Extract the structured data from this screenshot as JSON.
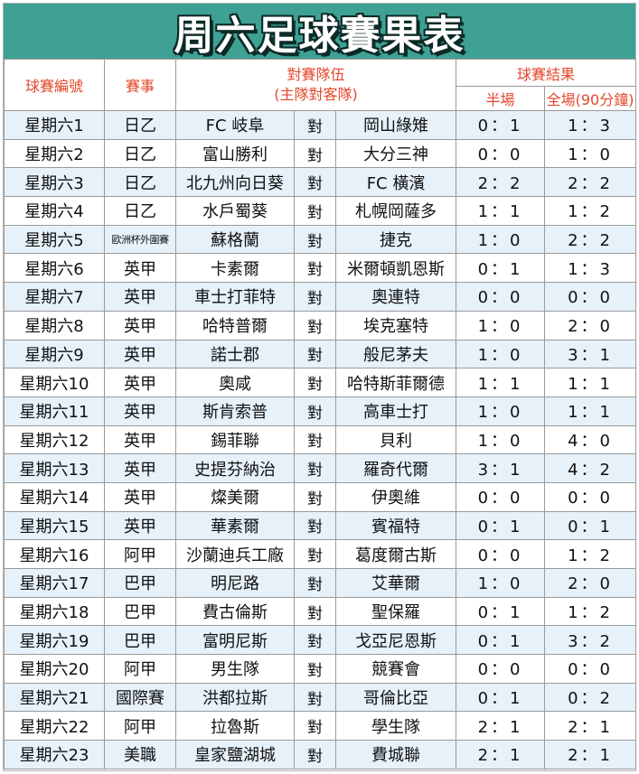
{
  "title": "周六足球賽果表",
  "headers": {
    "match_no": "球賽編號",
    "event": "賽事",
    "teams_line1": "對賽隊伍",
    "teams_line2": "(主隊對客隊)",
    "result": "球賽結果",
    "half_time": "半場",
    "full_time": "全場(90分鐘)"
  },
  "rows": [
    {
      "no": "星期六1",
      "event": "日乙",
      "home": "FC 岐阜",
      "vs": "對",
      "away": "岡山綠雉",
      "ht": "0：1",
      "ft": "1：3"
    },
    {
      "no": "星期六2",
      "event": "日乙",
      "home": "富山勝利",
      "vs": "對",
      "away": "大分三神",
      "ht": "0：0",
      "ft": "1：0"
    },
    {
      "no": "星期六3",
      "event": "日乙",
      "home": "北九州向日葵",
      "vs": "對",
      "away": "FC 橫濱",
      "ht": "2：2",
      "ft": "2：2"
    },
    {
      "no": "星期六4",
      "event": "日乙",
      "home": "水戶蜀葵",
      "vs": "對",
      "away": "札幌岡薩多",
      "ht": "1：1",
      "ft": "1：2"
    },
    {
      "no": "星期六5",
      "event": "歐洲杯外圍賽",
      "home": "蘇格蘭",
      "vs": "對",
      "away": "捷克",
      "ht": "1：0",
      "ft": "2：2"
    },
    {
      "no": "星期六6",
      "event": "英甲",
      "home": "卡素爾",
      "vs": "對",
      "away": "米爾頓凱恩斯",
      "ht": "0：1",
      "ft": "1：3"
    },
    {
      "no": "星期六7",
      "event": "英甲",
      "home": "車士打菲特",
      "vs": "對",
      "away": "奧連特",
      "ht": "0：0",
      "ft": "0：0"
    },
    {
      "no": "星期六8",
      "event": "英甲",
      "home": "哈特普爾",
      "vs": "對",
      "away": "埃克塞特",
      "ht": "1：0",
      "ft": "2：0"
    },
    {
      "no": "星期六9",
      "event": "英甲",
      "home": "諾士郡",
      "vs": "對",
      "away": "般尼茅夫",
      "ht": "1：0",
      "ft": "3：1"
    },
    {
      "no": "星期六10",
      "event": "英甲",
      "home": "奧咸",
      "vs": "對",
      "away": "哈特斯菲爾德",
      "ht": "1：1",
      "ft": "1：1"
    },
    {
      "no": "星期六11",
      "event": "英甲",
      "home": "斯肯索普",
      "vs": "對",
      "away": "高車士打",
      "ht": "1：0",
      "ft": "1：1"
    },
    {
      "no": "星期六12",
      "event": "英甲",
      "home": "錫菲聯",
      "vs": "對",
      "away": "貝利",
      "ht": "1：0",
      "ft": "4：0"
    },
    {
      "no": "星期六13",
      "event": "英甲",
      "home": "史提芬納治",
      "vs": "對",
      "away": "羅奇代爾",
      "ht": "3：1",
      "ft": "4：2"
    },
    {
      "no": "星期六14",
      "event": "英甲",
      "home": "燦美爾",
      "vs": "對",
      "away": "伊奧維",
      "ht": "0：0",
      "ft": "0：0"
    },
    {
      "no": "星期六15",
      "event": "英甲",
      "home": "華素爾",
      "vs": "對",
      "away": "賓福特",
      "ht": "0：1",
      "ft": "0：1"
    },
    {
      "no": "星期六16",
      "event": "阿甲",
      "home": "沙蘭迪兵工廠",
      "vs": "對",
      "away": "葛度爾古斯",
      "ht": "0：0",
      "ft": "1：2"
    },
    {
      "no": "星期六17",
      "event": "巴甲",
      "home": "明尼路",
      "vs": "對",
      "away": "艾華爾",
      "ht": "1：0",
      "ft": "2：0"
    },
    {
      "no": "星期六18",
      "event": "巴甲",
      "home": "費古倫斯",
      "vs": "對",
      "away": "聖保羅",
      "ht": "0：1",
      "ft": "1：2"
    },
    {
      "no": "星期六19",
      "event": "巴甲",
      "home": "富明尼斯",
      "vs": "對",
      "away": "戈亞尼恩斯",
      "ht": "0：1",
      "ft": "3：2"
    },
    {
      "no": "星期六20",
      "event": "阿甲",
      "home": "男生隊",
      "vs": "對",
      "away": "競賽會",
      "ht": "0：0",
      "ft": "0：0"
    },
    {
      "no": "星期六21",
      "event": "國際賽",
      "home": "洪都拉斯",
      "vs": "對",
      "away": "哥倫比亞",
      "ht": "0：1",
      "ft": "0：2"
    },
    {
      "no": "星期六22",
      "event": "阿甲",
      "home": "拉魯斯",
      "vs": "對",
      "away": "學生隊",
      "ht": "2：1",
      "ft": "2：1"
    },
    {
      "no": "星期六23",
      "event": "美職",
      "home": "皇家鹽湖城",
      "vs": "對",
      "away": "費城聯",
      "ht": "2：1",
      "ft": "2：1"
    }
  ]
}
